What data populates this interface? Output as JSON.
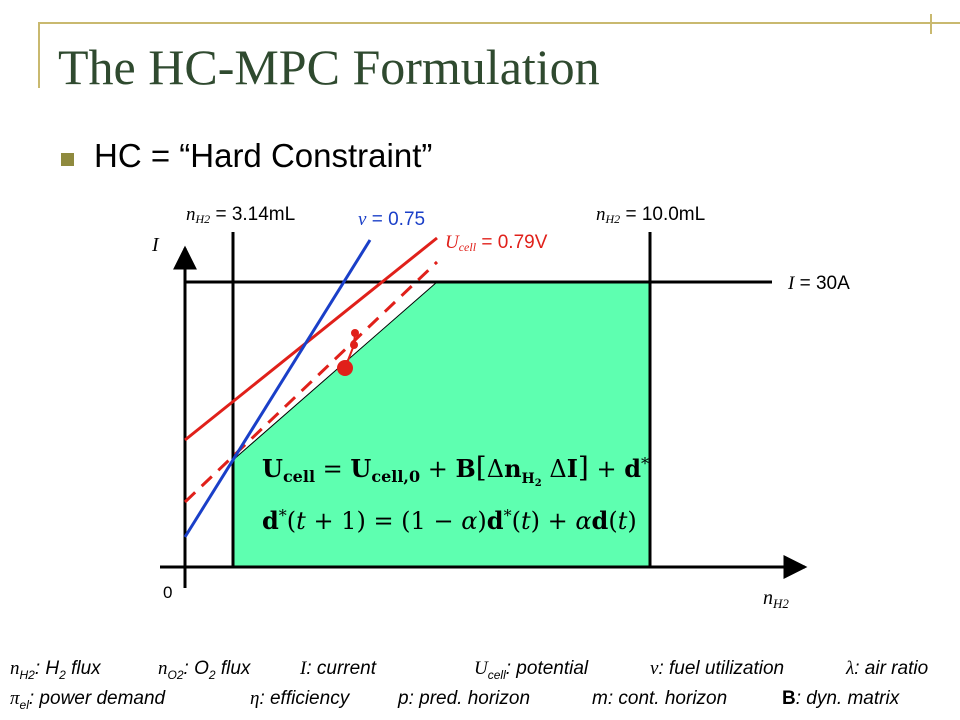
{
  "slide": {
    "title": "The HC-MPC Formulation",
    "bullet": "HC = “Hard Constraint”"
  },
  "diagram": {
    "axis_y_label": "I",
    "axis_x_label": "nH2",
    "origin_label": "0",
    "constraints": {
      "nh2_min": {
        "symbol": "nH2",
        "eq": "=",
        "value": "3.14mL"
      },
      "nh2_max": {
        "symbol": "nH2",
        "eq": "=",
        "value": "10.0mL"
      },
      "current_max": {
        "symbol": "I",
        "eq": "=",
        "value": "30A"
      },
      "fuel_util": {
        "symbol": "ν",
        "eq": "=",
        "value": "0.75"
      },
      "cell_voltage": {
        "symbol": "Ucell",
        "eq": "=",
        "value": "0.79V"
      }
    },
    "equations": {
      "eq1": "Ucell = Ucell,0 + B[ΔnH2 ΔI] + d*",
      "eq2": "d*(t + 1) = (1 − α)d*(t) + αd(t)"
    },
    "colors": {
      "feasible_region": "#5effb0",
      "voltage_constraint": "#e0201a",
      "fuel_constraint": "#1a3fc8",
      "axes": "#000000"
    }
  },
  "legend": {
    "row1": [
      {
        "sym": "nH2",
        "desc": ": H2 flux"
      },
      {
        "sym": "nO2",
        "desc": ": O2 flux"
      },
      {
        "sym": "I",
        "desc": ": current"
      },
      {
        "sym": "Ucell",
        "desc": ": potential"
      },
      {
        "sym": "ν",
        "desc": ": fuel utilization"
      },
      {
        "sym": "λ",
        "desc": ": air ratio"
      }
    ],
    "row2": [
      {
        "sym": "πel",
        "desc": ": power demand"
      },
      {
        "sym": "η",
        "desc": ": efficiency"
      },
      {
        "sym": "p",
        "desc": ": pred. horizon"
      },
      {
        "sym": "m",
        "desc": ": cont. horizon"
      },
      {
        "sym": "B",
        "desc": ": dyn. matrix"
      }
    ]
  }
}
